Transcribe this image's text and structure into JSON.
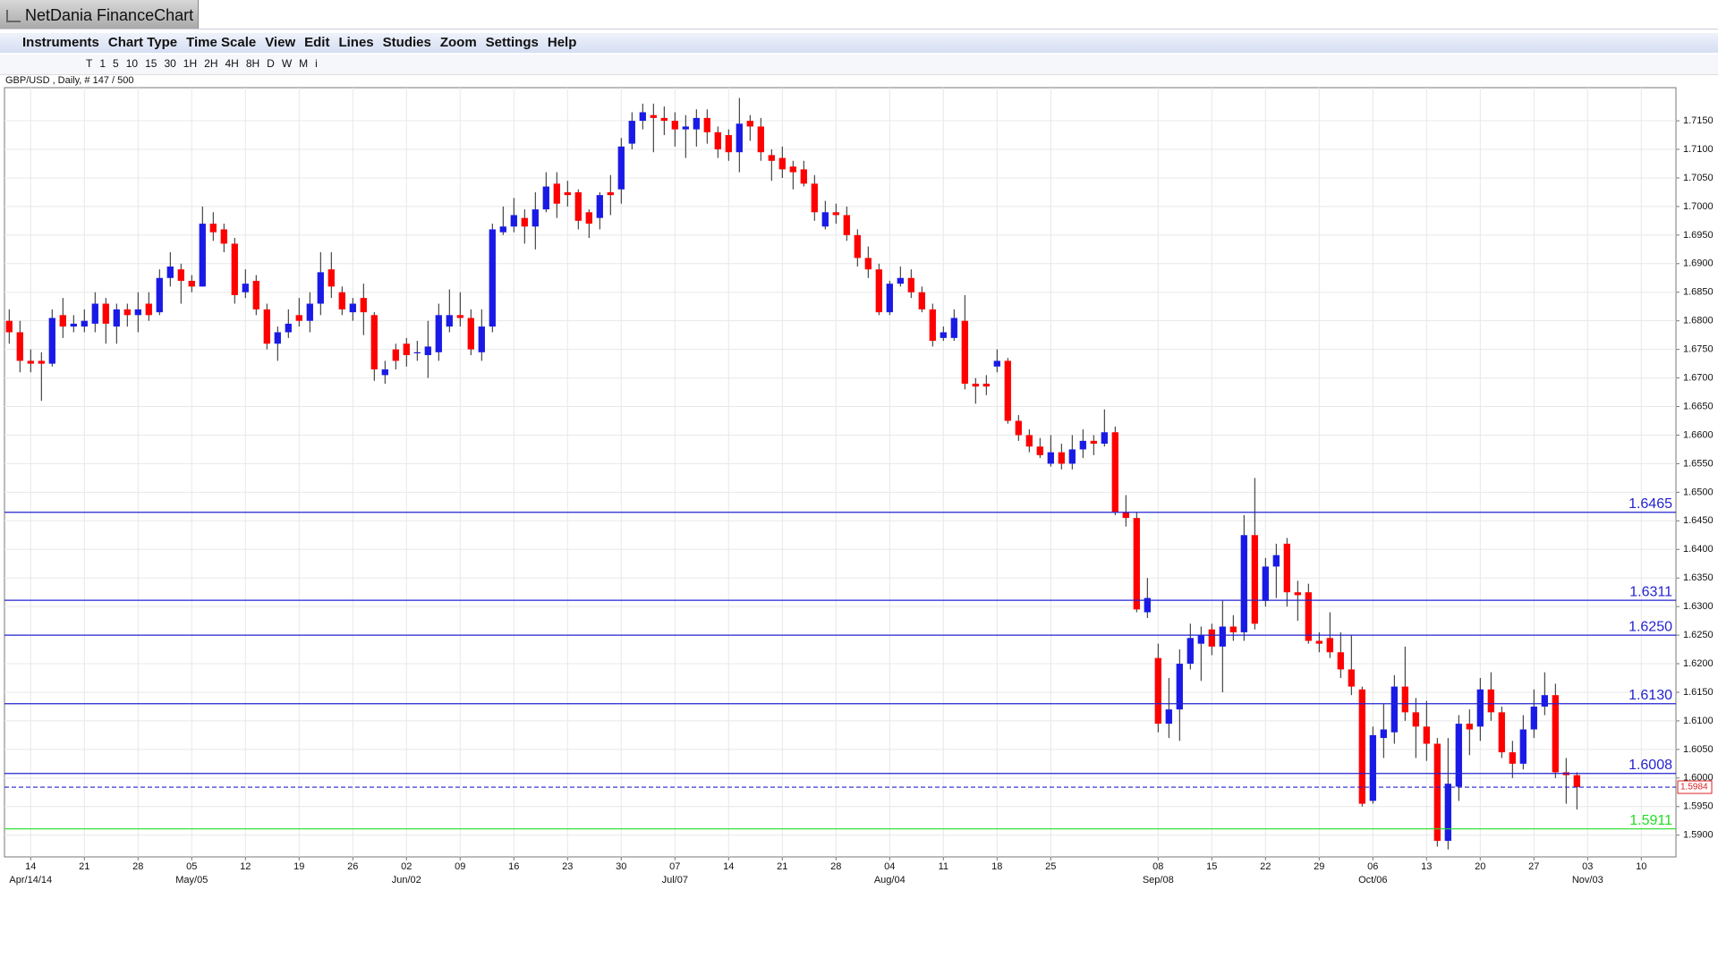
{
  "window_title": "NetDania FinanceChart",
  "menu": [
    "Instruments",
    "Chart Type",
    "Time Scale",
    "View",
    "Edit",
    "Lines",
    "Studies",
    "Zoom",
    "Settings",
    "Help"
  ],
  "toolbar": [
    "T",
    "1",
    "5",
    "10",
    "15",
    "30",
    "1H",
    "2H",
    "4H",
    "8H",
    "D",
    "W",
    "M",
    "i"
  ],
  "chart_data": {
    "type": "candlestick",
    "title": "GBP/USD , Daily, # 147 / 500",
    "up_color": "#1a1ae6",
    "down_color": "#ff0000",
    "grid": true,
    "ylim": [
      1.5862,
      1.7208
    ],
    "yticks": [
      {
        "value": 1.59,
        "label": "1.5900"
      },
      {
        "value": 1.595,
        "label": "1.5950"
      },
      {
        "value": 1.6,
        "label": "1.6000"
      },
      {
        "value": 1.605,
        "label": "1.6050"
      },
      {
        "value": 1.61,
        "label": "1.6100"
      },
      {
        "value": 1.615,
        "label": "1.6150"
      },
      {
        "value": 1.62,
        "label": "1.6200"
      },
      {
        "value": 1.625,
        "label": "1.6250"
      },
      {
        "value": 1.63,
        "label": "1.6300"
      },
      {
        "value": 1.635,
        "label": "1.6350"
      },
      {
        "value": 1.64,
        "label": "1.6400"
      },
      {
        "value": 1.645,
        "label": "1.6450"
      },
      {
        "value": 1.65,
        "label": "1.6500"
      },
      {
        "value": 1.655,
        "label": "1.6550"
      },
      {
        "value": 1.66,
        "label": "1.6600"
      },
      {
        "value": 1.665,
        "label": "1.6650"
      },
      {
        "value": 1.67,
        "label": "1.6700"
      },
      {
        "value": 1.675,
        "label": "1.6750"
      },
      {
        "value": 1.68,
        "label": "1.6800"
      },
      {
        "value": 1.685,
        "label": "1.6850"
      },
      {
        "value": 1.69,
        "label": "1.6900"
      },
      {
        "value": 1.695,
        "label": "1.6950"
      },
      {
        "value": 1.7,
        "label": "1.7000"
      },
      {
        "value": 1.705,
        "label": "1.7050"
      },
      {
        "value": 1.71,
        "label": "1.7100"
      },
      {
        "value": 1.715,
        "label": "1.7150"
      }
    ],
    "xticks": [
      {
        "value": 2,
        "label": "14"
      },
      {
        "value": 7,
        "label": "21"
      },
      {
        "value": 12,
        "label": "28"
      },
      {
        "value": 17,
        "label": "05"
      },
      {
        "value": 22,
        "label": "12"
      },
      {
        "value": 27,
        "label": "19"
      },
      {
        "value": 32,
        "label": "26"
      },
      {
        "value": 37,
        "label": "02"
      },
      {
        "value": 42,
        "label": "09"
      },
      {
        "value": 47,
        "label": "16"
      },
      {
        "value": 52,
        "label": "23"
      },
      {
        "value": 57,
        "label": "30"
      },
      {
        "value": 62,
        "label": "07"
      },
      {
        "value": 67,
        "label": "14"
      },
      {
        "value": 72,
        "label": "21"
      },
      {
        "value": 77,
        "label": "28"
      },
      {
        "value": 82,
        "label": "04"
      },
      {
        "value": 87,
        "label": "11"
      },
      {
        "value": 92,
        "label": "18"
      },
      {
        "value": 97,
        "label": "25"
      },
      {
        "value": 107,
        "label": "08"
      },
      {
        "value": 112,
        "label": "15"
      },
      {
        "value": 117,
        "label": "22"
      },
      {
        "value": 122,
        "label": "29"
      },
      {
        "value": 127,
        "label": "06"
      },
      {
        "value": 132,
        "label": "13"
      },
      {
        "value": 137,
        "label": "20"
      },
      {
        "value": 142,
        "label": "27"
      },
      {
        "value": 147,
        "label": "03"
      },
      {
        "value": 152,
        "label": "10"
      }
    ],
    "xticks_months": [
      {
        "value": 2,
        "label": "Apr/14/14"
      },
      {
        "value": 17,
        "label": "May/05"
      },
      {
        "value": 37,
        "label": "Jun/02"
      },
      {
        "value": 62,
        "label": "Jul/07"
      },
      {
        "value": 82,
        "label": "Aug/04"
      },
      {
        "value": 107,
        "label": "Sep/08"
      },
      {
        "value": 127,
        "label": "Oct/06"
      },
      {
        "value": 147,
        "label": "Nov/03"
      }
    ],
    "levels": [
      {
        "value": 1.6465,
        "label": "1.6465",
        "color": "#2323d0"
      },
      {
        "value": 1.6311,
        "label": "1.6311",
        "color": "#2323d0"
      },
      {
        "value": 1.625,
        "label": "1.6250",
        "color": "#2323d0"
      },
      {
        "value": 1.613,
        "label": "1.6130",
        "color": "#2323d0"
      },
      {
        "value": 1.6008,
        "label": "1.6008",
        "color": "#2323d0"
      },
      {
        "value": 1.5911,
        "label": "1.5911",
        "color": "#22dd22"
      }
    ],
    "last_price": {
      "value": 1.5984,
      "label": "1.5984",
      "color": "#2323d0"
    },
    "open": [
      1.68,
      1.678,
      1.673,
      1.673,
      1.6725,
      1.681,
      1.679,
      1.679,
      1.6795,
      1.683,
      1.679,
      1.682,
      1.681,
      1.683,
      1.6815,
      1.6875,
      1.689,
      1.687,
      1.686,
      1.697,
      1.696,
      1.6935,
      1.685,
      1.687,
      1.682,
      1.676,
      1.678,
      1.681,
      1.68,
      1.683,
      1.689,
      1.685,
      1.6815,
      1.684,
      1.681,
      1.6705,
      1.675,
      1.676,
      1.6745,
      1.674,
      1.6745,
      1.679,
      1.681,
      1.6805,
      1.6745,
      1.679,
      1.6955,
      1.6965,
      1.698,
      1.6965,
      1.6995,
      1.704,
      1.7025,
      1.7025,
      1.699,
      1.698,
      1.7025,
      1.703,
      1.711,
      1.715,
      1.716,
      1.7155,
      1.715,
      1.7135,
      1.7135,
      1.7155,
      1.713,
      1.7125,
      1.7095,
      1.715,
      1.714,
      1.709,
      1.7085,
      1.707,
      1.7065,
      1.704,
      1.6965,
      1.699,
      1.6985,
      1.695,
      1.691,
      1.689,
      1.6815,
      1.6865,
      1.6875,
      1.685,
      1.682,
      1.677,
      1.677,
      1.68,
      1.669,
      1.669,
      1.672,
      1.673,
      1.6625,
      1.66,
      1.658,
      1.655,
      1.657,
      1.655,
      1.6575,
      1.659,
      1.6585,
      1.6605,
      1.6465,
      1.6455,
      1.629,
      1.621,
      1.6095,
      1.612,
      1.62,
      1.6235,
      1.626,
      1.623,
      1.6265,
      1.6255,
      1.6425,
      1.631,
      1.637,
      1.641,
      1.6325,
      1.6325,
      1.624,
      1.6245,
      1.622,
      1.619,
      1.6155,
      1.596,
      1.607,
      1.608,
      1.616,
      1.6115,
      1.609,
      1.606,
      1.589,
      1.5985,
      1.6095,
      1.609,
      1.6155,
      1.6115,
      1.6045,
      1.6025,
      1.6085,
      1.6125,
      1.6145,
      1.601,
      1.6005
    ],
    "high": [
      1.682,
      1.68,
      1.675,
      1.6745,
      1.682,
      1.684,
      1.681,
      1.682,
      1.685,
      1.684,
      1.683,
      1.683,
      1.685,
      1.685,
      1.689,
      1.692,
      1.69,
      1.688,
      1.7,
      1.699,
      1.697,
      1.6945,
      1.689,
      1.688,
      1.683,
      1.679,
      1.682,
      1.684,
      1.685,
      1.692,
      1.692,
      1.686,
      1.684,
      1.6865,
      1.6815,
      1.673,
      1.676,
      1.677,
      1.6765,
      1.68,
      1.683,
      1.6855,
      1.685,
      1.682,
      1.682,
      1.697,
      1.7,
      1.7015,
      1.6995,
      1.7025,
      1.706,
      1.706,
      1.7045,
      1.703,
      1.6995,
      1.7025,
      1.7055,
      1.712,
      1.7165,
      1.718,
      1.718,
      1.7175,
      1.7165,
      1.716,
      1.717,
      1.717,
      1.714,
      1.7135,
      1.719,
      1.716,
      1.7155,
      1.71,
      1.7105,
      1.708,
      1.708,
      1.7055,
      1.701,
      1.7005,
      1.7,
      1.696,
      1.693,
      1.69,
      1.687,
      1.6895,
      1.689,
      1.686,
      1.683,
      1.679,
      1.682,
      1.6845,
      1.67,
      1.6705,
      1.675,
      1.6735,
      1.6635,
      1.661,
      1.6595,
      1.66,
      1.6585,
      1.66,
      1.661,
      1.66,
      1.6645,
      1.6615,
      1.6495,
      1.6465,
      1.635,
      1.6235,
      1.6175,
      1.6225,
      1.627,
      1.6265,
      1.627,
      1.631,
      1.6285,
      1.646,
      1.6525,
      1.6385,
      1.641,
      1.642,
      1.6345,
      1.634,
      1.6255,
      1.629,
      1.6255,
      1.625,
      1.616,
      1.609,
      1.613,
      1.618,
      1.623,
      1.614,
      1.6135,
      1.607,
      1.607,
      1.611,
      1.612,
      1.6175,
      1.6185,
      1.6125,
      1.6065,
      1.611,
      1.6155,
      1.6185,
      1.6165,
      1.6035,
      1.601
    ],
    "low": [
      1.676,
      1.671,
      1.671,
      1.666,
      1.672,
      1.677,
      1.678,
      1.678,
      1.678,
      1.676,
      1.676,
      1.679,
      1.678,
      1.68,
      1.681,
      1.686,
      1.683,
      1.685,
      1.686,
      1.694,
      1.692,
      1.683,
      1.684,
      1.681,
      1.675,
      1.673,
      1.677,
      1.679,
      1.678,
      1.681,
      1.684,
      1.681,
      1.68,
      1.6775,
      1.6695,
      1.669,
      1.6715,
      1.672,
      1.673,
      1.67,
      1.673,
      1.678,
      1.679,
      1.674,
      1.673,
      1.678,
      1.695,
      1.6955,
      1.6935,
      1.6925,
      1.699,
      1.698,
      1.7,
      1.696,
      1.6945,
      1.696,
      1.6985,
      1.7005,
      1.71,
      1.7135,
      1.7095,
      1.7125,
      1.7105,
      1.7085,
      1.7105,
      1.711,
      1.7085,
      1.708,
      1.706,
      1.7115,
      1.708,
      1.7045,
      1.705,
      1.703,
      1.7035,
      1.6975,
      1.696,
      1.697,
      1.694,
      1.6895,
      1.6875,
      1.681,
      1.681,
      1.686,
      1.684,
      1.6815,
      1.6755,
      1.6765,
      1.6765,
      1.668,
      1.6655,
      1.667,
      1.671,
      1.662,
      1.659,
      1.657,
      1.656,
      1.6545,
      1.654,
      1.654,
      1.656,
      1.6565,
      1.658,
      1.646,
      1.644,
      1.629,
      1.628,
      1.608,
      1.607,
      1.6065,
      1.619,
      1.617,
      1.6215,
      1.615,
      1.624,
      1.624,
      1.626,
      1.63,
      1.6315,
      1.63,
      1.6275,
      1.6235,
      1.622,
      1.621,
      1.6175,
      1.6145,
      1.595,
      1.5955,
      1.6035,
      1.606,
      1.61,
      1.6035,
      1.603,
      1.588,
      1.5875,
      1.596,
      1.604,
      1.6065,
      1.61,
      1.6035,
      1.6,
      1.6015,
      1.607,
      1.611,
      1.6,
      1.5955,
      1.5945
    ],
    "close": [
      1.678,
      1.673,
      1.6725,
      1.6725,
      1.6805,
      1.679,
      1.6795,
      1.68,
      1.683,
      1.6795,
      1.682,
      1.681,
      1.682,
      1.681,
      1.6875,
      1.6895,
      1.687,
      1.686,
      1.697,
      1.6955,
      1.6935,
      1.6845,
      1.6865,
      1.682,
      1.676,
      1.678,
      1.6795,
      1.68,
      1.683,
      1.6885,
      1.686,
      1.682,
      1.683,
      1.6815,
      1.6715,
      1.6715,
      1.673,
      1.674,
      1.6745,
      1.6755,
      1.681,
      1.681,
      1.6805,
      1.675,
      1.679,
      1.696,
      1.6965,
      1.6985,
      1.6965,
      1.6995,
      1.7035,
      1.7005,
      1.702,
      1.6975,
      1.697,
      1.702,
      1.702,
      1.7105,
      1.715,
      1.7165,
      1.7155,
      1.715,
      1.7135,
      1.714,
      1.7155,
      1.713,
      1.71,
      1.7095,
      1.7145,
      1.714,
      1.7095,
      1.708,
      1.7065,
      1.706,
      1.704,
      1.699,
      1.699,
      1.6985,
      1.695,
      1.691,
      1.689,
      1.6815,
      1.6865,
      1.6875,
      1.685,
      1.682,
      1.6765,
      1.678,
      1.6805,
      1.669,
      1.6685,
      1.6685,
      1.673,
      1.6625,
      1.66,
      1.658,
      1.6565,
      1.657,
      1.655,
      1.6575,
      1.659,
      1.6585,
      1.6605,
      1.6465,
      1.6455,
      1.6295,
      1.6315,
      1.6095,
      1.612,
      1.62,
      1.6245,
      1.625,
      1.623,
      1.6265,
      1.6255,
      1.6425,
      1.627,
      1.637,
      1.639,
      1.6325,
      1.632,
      1.624,
      1.6235,
      1.622,
      1.619,
      1.616,
      1.5955,
      1.6075,
      1.6085,
      1.616,
      1.6115,
      1.609,
      1.606,
      1.589,
      1.599,
      1.6095,
      1.6085,
      1.6155,
      1.6115,
      1.6045,
      1.6025,
      1.6085,
      1.6125,
      1.6145,
      1.601,
      1.6005,
      1.5984
    ]
  }
}
